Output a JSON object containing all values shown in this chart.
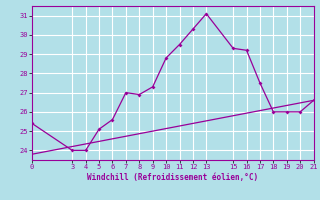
{
  "xlabel": "Windchill (Refroidissement éolien,°C)",
  "background_color": "#b2e0e8",
  "grid_color": "#ffffff",
  "line_color": "#990099",
  "curve1_x": [
    0,
    3,
    4,
    5,
    6,
    7,
    8,
    9,
    10,
    11,
    12,
    13,
    15,
    16,
    17,
    18,
    19,
    20,
    21
  ],
  "curve1_y": [
    25.4,
    24.0,
    24.0,
    25.1,
    25.6,
    27.0,
    26.9,
    27.3,
    28.8,
    29.5,
    30.3,
    31.1,
    29.3,
    29.2,
    27.5,
    26.0,
    26.0,
    26.0,
    26.6
  ],
  "curve2_x": [
    0,
    21
  ],
  "curve2_y": [
    23.8,
    26.6
  ],
  "xlim": [
    0,
    21
  ],
  "ylim": [
    23.5,
    31.5
  ],
  "yticks": [
    24,
    25,
    26,
    27,
    28,
    29,
    30,
    31
  ],
  "xticks": [
    0,
    3,
    4,
    5,
    6,
    7,
    8,
    9,
    10,
    11,
    12,
    13,
    15,
    16,
    17,
    18,
    19,
    20,
    21
  ]
}
